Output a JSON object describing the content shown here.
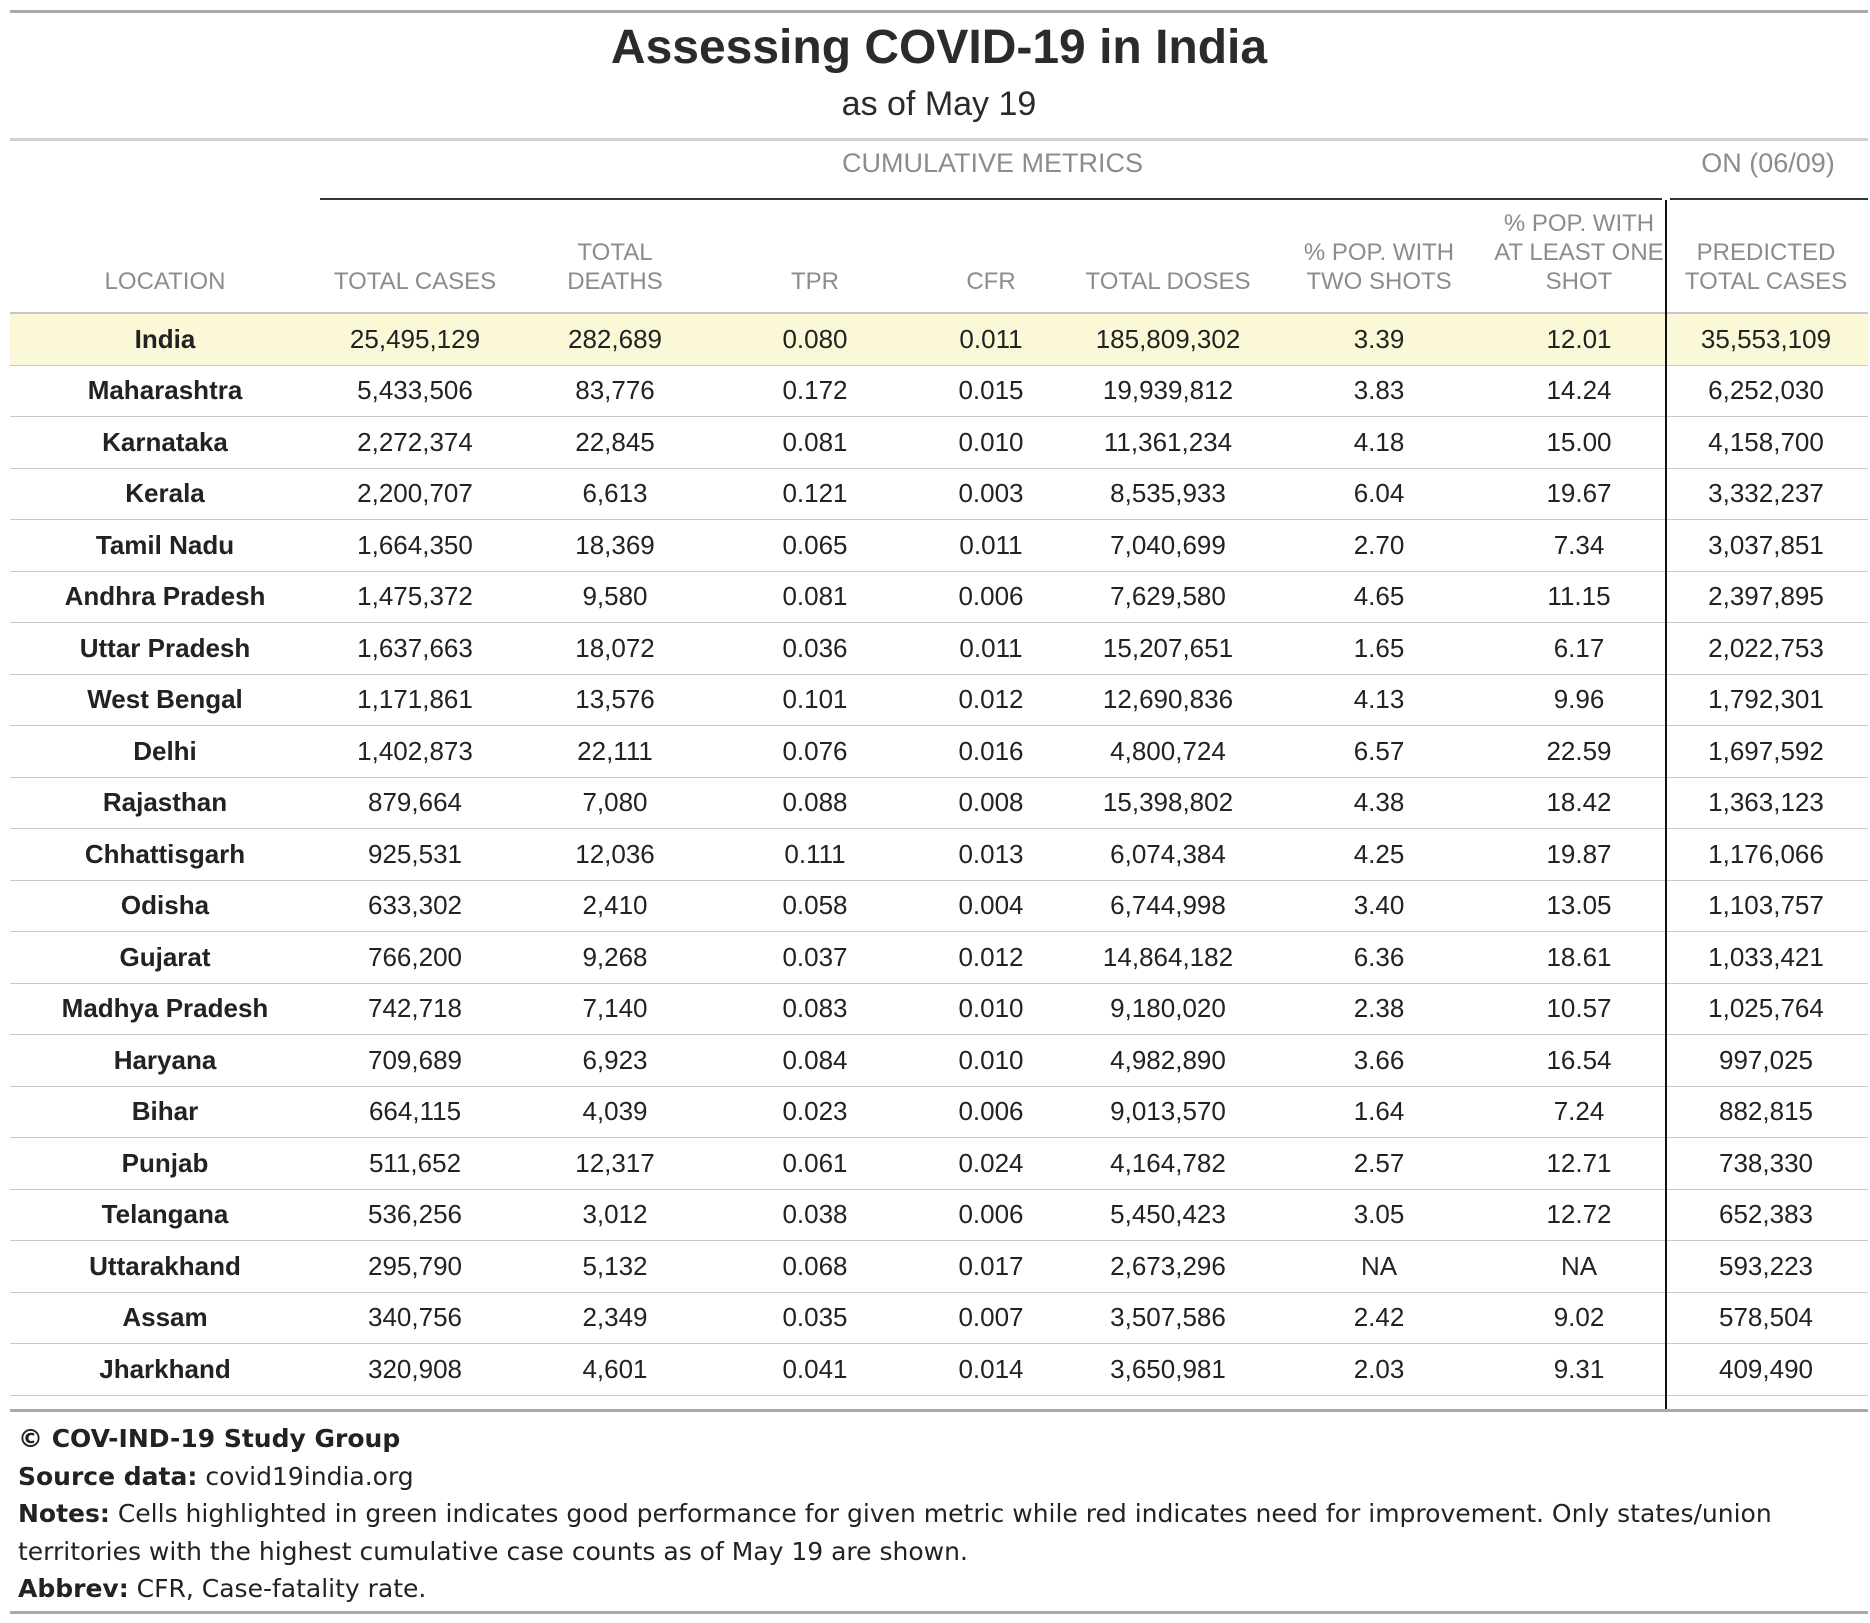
{
  "title": "Assessing COVID-19 in India",
  "subtitle": "as of May 19",
  "groups": {
    "cumulative": "CUMULATIVE METRICS",
    "on": "ON (06/09)"
  },
  "columns": [
    [
      "LOCATION"
    ],
    [
      "TOTAL CASES"
    ],
    [
      "TOTAL",
      "DEATHS"
    ],
    [
      "TPR"
    ],
    [
      "CFR"
    ],
    [
      "TOTAL DOSES"
    ],
    [
      "% POP. WITH",
      "TWO SHOTS"
    ],
    [
      "% POP. WITH",
      "AT LEAST ONE",
      "SHOT"
    ],
    [
      "PREDICTED",
      "TOTAL CASES"
    ]
  ],
  "rows": [
    [
      "India",
      "25,495,129",
      "282,689",
      "0.080",
      "0.011",
      "185,809,302",
      "3.39",
      "12.01",
      "35,553,109"
    ],
    [
      "Maharashtra",
      "5,433,506",
      "83,776",
      "0.172",
      "0.015",
      "19,939,812",
      "3.83",
      "14.24",
      "6,252,030"
    ],
    [
      "Karnataka",
      "2,272,374",
      "22,845",
      "0.081",
      "0.010",
      "11,361,234",
      "4.18",
      "15.00",
      "4,158,700"
    ],
    [
      "Kerala",
      "2,200,707",
      "6,613",
      "0.121",
      "0.003",
      "8,535,933",
      "6.04",
      "19.67",
      "3,332,237"
    ],
    [
      "Tamil Nadu",
      "1,664,350",
      "18,369",
      "0.065",
      "0.011",
      "7,040,699",
      "2.70",
      "7.34",
      "3,037,851"
    ],
    [
      "Andhra Pradesh",
      "1,475,372",
      "9,580",
      "0.081",
      "0.006",
      "7,629,580",
      "4.65",
      "11.15",
      "2,397,895"
    ],
    [
      "Uttar Pradesh",
      "1,637,663",
      "18,072",
      "0.036",
      "0.011",
      "15,207,651",
      "1.65",
      "6.17",
      "2,022,753"
    ],
    [
      "West Bengal",
      "1,171,861",
      "13,576",
      "0.101",
      "0.012",
      "12,690,836",
      "4.13",
      "9.96",
      "1,792,301"
    ],
    [
      "Delhi",
      "1,402,873",
      "22,111",
      "0.076",
      "0.016",
      "4,800,724",
      "6.57",
      "22.59",
      "1,697,592"
    ],
    [
      "Rajasthan",
      "879,664",
      "7,080",
      "0.088",
      "0.008",
      "15,398,802",
      "4.38",
      "18.42",
      "1,363,123"
    ],
    [
      "Chhattisgarh",
      "925,531",
      "12,036",
      "0.111",
      "0.013",
      "6,074,384",
      "4.25",
      "19.87",
      "1,176,066"
    ],
    [
      "Odisha",
      "633,302",
      "2,410",
      "0.058",
      "0.004",
      "6,744,998",
      "3.40",
      "13.05",
      "1,103,757"
    ],
    [
      "Gujarat",
      "766,200",
      "9,268",
      "0.037",
      "0.012",
      "14,864,182",
      "6.36",
      "18.61",
      "1,033,421"
    ],
    [
      "Madhya Pradesh",
      "742,718",
      "7,140",
      "0.083",
      "0.010",
      "9,180,020",
      "2.38",
      "10.57",
      "1,025,764"
    ],
    [
      "Haryana",
      "709,689",
      "6,923",
      "0.084",
      "0.010",
      "4,982,890",
      "3.66",
      "16.54",
      "997,025"
    ],
    [
      "Bihar",
      "664,115",
      "4,039",
      "0.023",
      "0.006",
      "9,013,570",
      "1.64",
      "7.24",
      "882,815"
    ],
    [
      "Punjab",
      "511,652",
      "12,317",
      "0.061",
      "0.024",
      "4,164,782",
      "2.57",
      "12.71",
      "738,330"
    ],
    [
      "Telangana",
      "536,256",
      "3,012",
      "0.038",
      "0.006",
      "5,450,423",
      "3.05",
      "12.72",
      "652,383"
    ],
    [
      "Uttarakhand",
      "295,790",
      "5,132",
      "0.068",
      "0.017",
      "2,673,296",
      "NA",
      "NA",
      "593,223"
    ],
    [
      "Assam",
      "340,756",
      "2,349",
      "0.035",
      "0.007",
      "3,507,586",
      "2.42",
      "9.02",
      "578,504"
    ],
    [
      "Jharkhand",
      "320,908",
      "4,601",
      "0.041",
      "0.014",
      "3,650,981",
      "2.03",
      "9.31",
      "409,490"
    ]
  ],
  "footer": {
    "copyright": "© COV-IND-19 Study Group",
    "source_label": "Source data:",
    "source_value": "covid19india.org",
    "notes_label": "Notes:",
    "notes_value": "Cells highlighted in green indicates good performance for given metric while red indicates need for improvement. Only states/union territories with the highest cumulative case counts as of May 19 are shown.",
    "abbrev_label": "Abbrev:",
    "abbrev_value": "CFR, Case-fatality rate."
  },
  "colors": {
    "highlight_row": "#fbf8d8",
    "header_text": "#8c8c8c",
    "rule": "#a9a9a9"
  }
}
